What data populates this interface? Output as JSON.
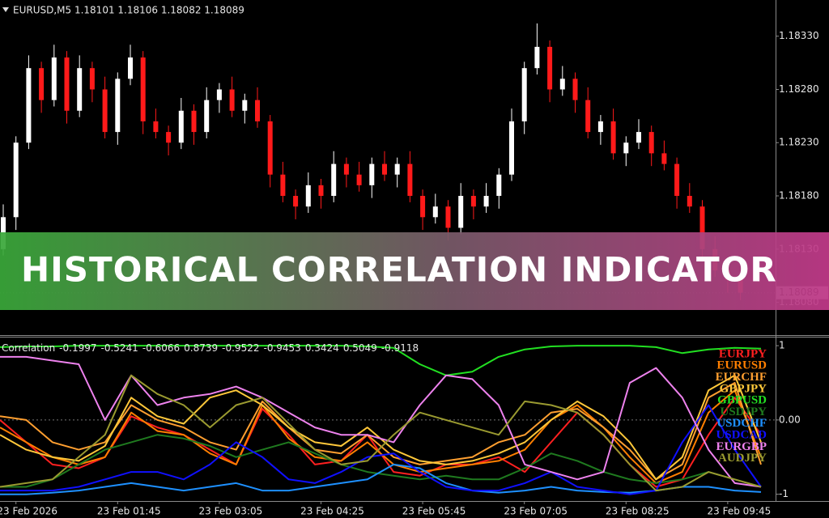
{
  "banner": {
    "text": "HISTORICAL CORRELATION INDICATOR"
  },
  "chart_data": [
    {
      "type": "candlestick",
      "title": "EURUSD,M5  1.18101 1.18106 1.18082 1.18089",
      "up_color": "#ffffff",
      "down_color": "#ff1a1a",
      "categories": [
        null,
        "23 Feb 2026",
        null,
        null,
        null,
        null,
        null,
        null,
        null,
        "23 Feb 01:45",
        null,
        null,
        null,
        null,
        null,
        null,
        null,
        "23 Feb 03:05",
        null,
        null,
        null,
        null,
        null,
        null,
        null,
        "23 Feb 04:25",
        null,
        null,
        null,
        null,
        null,
        null,
        null,
        "23 Feb 05:45",
        null,
        null,
        null,
        null,
        null,
        null,
        null,
        "23 Feb 07:05",
        null,
        null,
        null,
        null,
        null,
        null,
        null,
        "23 Feb 08:25",
        null,
        null,
        null,
        null,
        null,
        null,
        null,
        "23 Feb 09:45",
        null
      ],
      "open": [
        1.1813,
        1.1816,
        1.1823,
        1.183,
        1.1827,
        1.1831,
        1.1826,
        1.183,
        1.1828,
        1.1824,
        1.1829,
        1.1831,
        1.1825,
        1.1824,
        1.1823,
        1.1826,
        1.1824,
        1.1827,
        1.1828,
        1.1826,
        1.1827,
        1.1825,
        1.182,
        1.1818,
        1.1817,
        1.1819,
        1.1818,
        1.1821,
        1.182,
        1.1819,
        1.1821,
        1.182,
        1.1821,
        1.1818,
        1.1816,
        1.1817,
        1.1815,
        1.1818,
        1.1817,
        1.1818,
        1.182,
        1.1825,
        1.183,
        1.1832,
        1.1828,
        1.1829,
        1.1827,
        1.1824,
        1.1825,
        1.1822,
        1.1823,
        1.1824,
        1.1822,
        1.1821,
        1.1818,
        1.1817,
        1.1813,
        1.1811,
        1.18101
      ],
      "high": [
        1.18172,
        1.18236,
        1.18312,
        1.18306,
        1.18322,
        1.18316,
        1.18312,
        1.18306,
        1.18292,
        1.18296,
        1.18322,
        1.18316,
        1.18262,
        1.18246,
        1.18272,
        1.18266,
        1.18282,
        1.18286,
        1.18292,
        1.18276,
        1.18282,
        1.18256,
        1.18212,
        1.18186,
        1.18202,
        1.18196,
        1.18222,
        1.18216,
        1.18212,
        1.18216,
        1.18222,
        1.18216,
        1.18222,
        1.18186,
        1.18182,
        1.18176,
        1.18192,
        1.18186,
        1.18192,
        1.18206,
        1.18262,
        1.18306,
        1.18342,
        1.18326,
        1.18302,
        1.18296,
        1.18282,
        1.18256,
        1.18262,
        1.18236,
        1.18252,
        1.18246,
        1.18232,
        1.18216,
        1.18192,
        1.18176,
        1.18142,
        1.18116,
        1.18106
      ],
      "low": [
        1.18124,
        1.18148,
        1.18224,
        1.18258,
        1.18264,
        1.18248,
        1.18254,
        1.18268,
        1.18234,
        1.18228,
        1.18284,
        1.18238,
        1.18234,
        1.18218,
        1.18224,
        1.18228,
        1.18234,
        1.18258,
        1.18254,
        1.18248,
        1.18244,
        1.18188,
        1.18174,
        1.18158,
        1.18164,
        1.18168,
        1.18174,
        1.18188,
        1.18184,
        1.18178,
        1.18194,
        1.18188,
        1.18174,
        1.18148,
        1.18154,
        1.18138,
        1.18144,
        1.18158,
        1.18164,
        1.18168,
        1.18194,
        1.18238,
        1.18294,
        1.18268,
        1.18274,
        1.18258,
        1.18234,
        1.18228,
        1.18214,
        1.18208,
        1.18224,
        1.18208,
        1.18204,
        1.18168,
        1.18164,
        1.18118,
        1.18104,
        1.18089,
        1.18082
      ],
      "close": [
        1.1816,
        1.1823,
        1.183,
        1.1827,
        1.1831,
        1.1826,
        1.183,
        1.1828,
        1.1824,
        1.1829,
        1.1831,
        1.1825,
        1.1824,
        1.1823,
        1.1826,
        1.1824,
        1.1827,
        1.1828,
        1.1826,
        1.1827,
        1.1825,
        1.182,
        1.1818,
        1.1817,
        1.1819,
        1.1818,
        1.1821,
        1.182,
        1.1819,
        1.1821,
        1.182,
        1.1821,
        1.1818,
        1.1816,
        1.1817,
        1.1815,
        1.1818,
        1.1817,
        1.1818,
        1.182,
        1.1825,
        1.183,
        1.1832,
        1.1828,
        1.1829,
        1.1827,
        1.1824,
        1.1825,
        1.1822,
        1.1823,
        1.1824,
        1.1822,
        1.1821,
        1.1818,
        1.1817,
        1.1813,
        1.1811,
        1.18101,
        1.18089
      ],
      "ylim": [
        1.1805,
        1.18364
      ],
      "yticks": [
        {
          "value": 1.1833,
          "label": "1.18330"
        },
        {
          "value": 1.1828,
          "label": "1.18280"
        },
        {
          "value": 1.1823,
          "label": "1.18230"
        },
        {
          "value": 1.1818,
          "label": "1.18180"
        },
        {
          "value": 1.1813,
          "label": "1.18130"
        },
        {
          "value": 1.1808,
          "label": "1.18080"
        }
      ],
      "current_price": {
        "value": 1.18089,
        "label": "1.18089"
      }
    },
    {
      "type": "line",
      "title": "Correlation",
      "header_values": [
        -0.1997,
        -0.5241,
        -0.6066,
        0.8739,
        -0.9522,
        -0.9453,
        0.3424,
        0.5049,
        -0.9118
      ],
      "ylim": [
        -1.08,
        1.11
      ],
      "yticks": [
        1,
        {
          "value": 0,
          "label": "0.00"
        },
        -1
      ],
      "level_lines": [
        0
      ],
      "legend": "right",
      "series": [
        {
          "name": "EURJPY",
          "color": "#ff2020",
          "values": [
            0.0,
            -0.3,
            -0.6,
            -0.65,
            -0.5,
            0.05,
            -0.1,
            -0.2,
            -0.4,
            -0.6,
            0.15,
            -0.2,
            -0.6,
            -0.55,
            -0.2,
            -0.7,
            -0.75,
            -0.6,
            -0.6,
            -0.5,
            -0.7,
            -0.3,
            0.1,
            -0.2,
            -0.6,
            -0.9,
            -0.8,
            -0.2,
            0.3,
            -0.2
          ]
        },
        {
          "name": "EURUSD",
          "color": "#ff7f00",
          "values": [
            -0.1,
            -0.3,
            -0.5,
            -0.6,
            -0.5,
            0.1,
            -0.15,
            -0.2,
            -0.45,
            -0.6,
            0.2,
            -0.25,
            -0.5,
            -0.55,
            -0.3,
            -0.6,
            -0.7,
            -0.65,
            -0.6,
            -0.55,
            -0.4,
            0.0,
            0.2,
            -0.1,
            -0.5,
            -0.85,
            -0.7,
            0.1,
            0.4,
            -0.5
          ]
        },
        {
          "name": "EURCHF",
          "color": "#ff9f30",
          "values": [
            0.05,
            0.0,
            -0.3,
            -0.4,
            -0.3,
            0.2,
            0.0,
            -0.1,
            -0.3,
            -0.4,
            0.25,
            -0.1,
            -0.4,
            -0.45,
            -0.2,
            -0.5,
            -0.6,
            -0.55,
            -0.5,
            -0.3,
            -0.2,
            0.1,
            0.15,
            -0.1,
            -0.4,
            -0.8,
            -0.6,
            0.3,
            0.5,
            -0.6
          ]
        },
        {
          "name": "GBPJPY",
          "color": "#ffc83a",
          "values": [
            -0.2,
            -0.4,
            -0.5,
            -0.55,
            -0.35,
            0.3,
            0.05,
            -0.05,
            0.3,
            0.4,
            0.2,
            -0.1,
            -0.3,
            -0.35,
            -0.1,
            -0.4,
            -0.55,
            -0.6,
            -0.55,
            -0.45,
            -0.3,
            0.0,
            0.25,
            0.05,
            -0.3,
            -0.8,
            -0.5,
            0.4,
            0.6,
            -0.3
          ]
        },
        {
          "name": "GBPUSD",
          "color": "#22e022",
          "values": [
            0.98,
            0.99,
            0.99,
            1.0,
            1.0,
            1.0,
            1.0,
            1.0,
            1.0,
            1.0,
            1.0,
            1.0,
            1.0,
            1.0,
            0.99,
            0.97,
            0.75,
            0.6,
            0.65,
            0.85,
            0.95,
            0.99,
            1.0,
            1.0,
            1.0,
            0.98,
            0.9,
            0.95,
            0.97,
            0.96
          ]
        },
        {
          "name": "USDJPY",
          "color": "#1f7a1f",
          "values": [
            -0.9,
            -0.9,
            -0.8,
            -0.6,
            -0.4,
            -0.3,
            -0.2,
            -0.25,
            -0.35,
            -0.5,
            -0.4,
            -0.3,
            -0.45,
            -0.6,
            -0.7,
            -0.75,
            -0.8,
            -0.75,
            -0.8,
            -0.8,
            -0.65,
            -0.45,
            -0.55,
            -0.7,
            -0.8,
            -0.85,
            -0.8,
            -0.7,
            -0.8,
            -0.9
          ]
        },
        {
          "name": "USDCHF",
          "color": "#1e90ff",
          "values": [
            -1.0,
            -1.0,
            -0.98,
            -0.95,
            -0.9,
            -0.85,
            -0.9,
            -0.95,
            -0.9,
            -0.85,
            -0.95,
            -0.95,
            -0.9,
            -0.85,
            -0.8,
            -0.6,
            -0.65,
            -0.85,
            -0.95,
            -0.98,
            -0.95,
            -0.9,
            -0.95,
            -0.97,
            -0.98,
            -0.95,
            -0.9,
            -0.9,
            -0.95,
            -0.97
          ]
        },
        {
          "name": "USDCAD",
          "color": "#1010ff",
          "values": [
            -0.95,
            -0.95,
            -0.95,
            -0.9,
            -0.8,
            -0.7,
            -0.7,
            -0.8,
            -0.6,
            -0.3,
            -0.5,
            -0.8,
            -0.85,
            -0.7,
            -0.5,
            -0.45,
            -0.7,
            -0.9,
            -0.95,
            -0.95,
            -0.85,
            -0.7,
            -0.9,
            -0.95,
            -1.0,
            -0.95,
            -0.3,
            0.2,
            -0.4,
            -0.9
          ]
        },
        {
          "name": "EURGBP",
          "color": "#ee82ee",
          "values": [
            0.85,
            0.85,
            0.8,
            0.75,
            0.0,
            0.6,
            0.2,
            0.3,
            0.35,
            0.45,
            0.3,
            0.1,
            -0.1,
            -0.2,
            -0.2,
            -0.3,
            0.2,
            0.6,
            0.55,
            0.2,
            -0.6,
            -0.7,
            -0.8,
            -0.7,
            0.5,
            0.7,
            0.3,
            -0.4,
            -0.85,
            -0.9
          ]
        },
        {
          "name": "AUDJPY",
          "color": "#9a9a30",
          "values": [
            -0.9,
            -0.85,
            -0.8,
            -0.5,
            -0.2,
            0.6,
            0.35,
            0.2,
            -0.1,
            0.2,
            0.3,
            -0.05,
            -0.4,
            -0.6,
            -0.55,
            -0.2,
            0.1,
            0.0,
            -0.1,
            -0.2,
            0.25,
            0.2,
            0.1,
            -0.2,
            -0.6,
            -0.95,
            -0.9,
            -0.7,
            -0.8,
            -0.9
          ]
        }
      ]
    }
  ]
}
